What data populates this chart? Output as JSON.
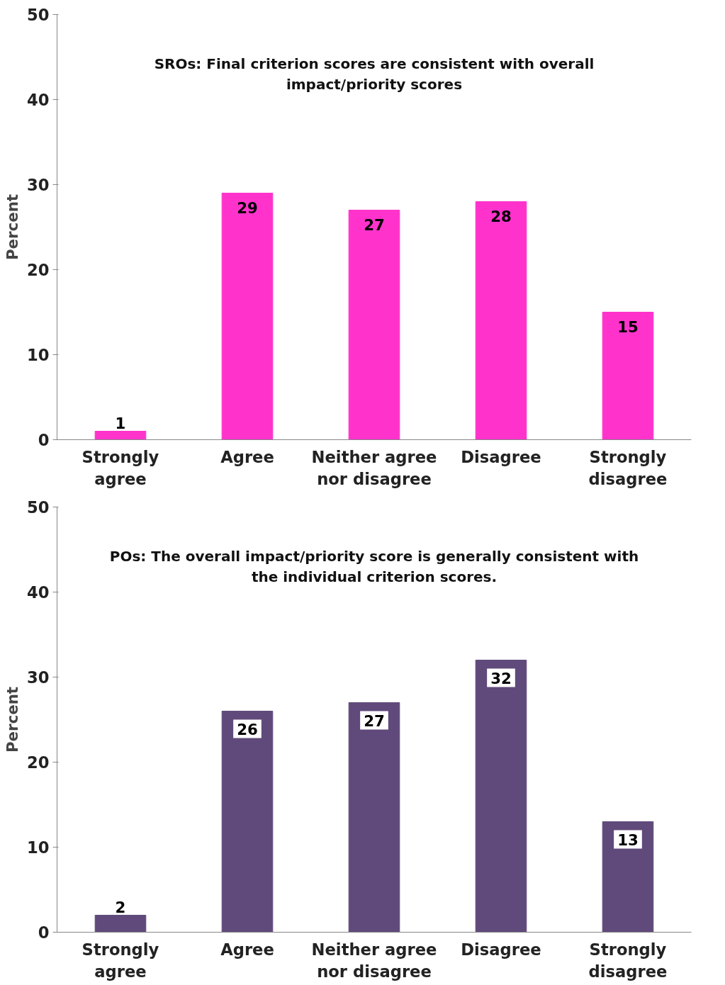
{
  "chart_data": [
    {
      "type": "bar",
      "title": "SROs:  Final criterion scores are consistent with overall impact/priority scores",
      "ylabel": "Percent",
      "categories": [
        "Strongly agree",
        "Agree",
        "Neither agree nor disagree",
        "Disagree",
        "Strongly disagree"
      ],
      "values": [
        1,
        29,
        27,
        28,
        15
      ],
      "color": "#ff33cc",
      "data_labels": true,
      "ylim": [
        0,
        50
      ],
      "yticks": [
        0,
        10,
        20,
        30,
        40,
        50
      ]
    },
    {
      "type": "bar",
      "title": "POs:  The overall impact/priority score is generally consistent with the individual criterion scores.",
      "ylabel": "Percent",
      "categories": [
        "Strongly agree",
        "Agree",
        "Neither agree nor disagree",
        "Disagree",
        "Strongly disagree"
      ],
      "values": [
        2,
        26,
        27,
        32,
        13
      ],
      "color": "#604a7b",
      "data_labels": true,
      "ylim": [
        0,
        50
      ],
      "yticks": [
        0,
        10,
        20,
        30,
        40,
        50
      ]
    }
  ]
}
